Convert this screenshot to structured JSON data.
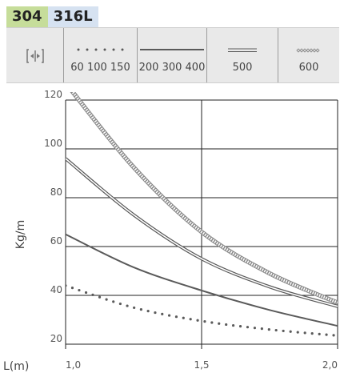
{
  "tabs": [
    {
      "label": "304",
      "active": true
    },
    {
      "label": "316L",
      "active": false
    }
  ],
  "legend": {
    "resize_icon": "resize-horizontal-icon",
    "items": [
      {
        "label": "60 100 150",
        "style": "dotted"
      },
      {
        "label": "200 300 400",
        "style": "solid"
      },
      {
        "label": "500",
        "style": "double"
      },
      {
        "label": "600",
        "style": "diamond"
      }
    ]
  },
  "colors": {
    "tab_active": "#c6dd9a",
    "tab_inactive": "#d6e2f1",
    "series": "#5a5a5a",
    "diamond_series": "#8a8a8a"
  },
  "chart_data": {
    "type": "line",
    "xlabel": "L(m)",
    "ylabel": "Kg/m",
    "xlim": [
      1.0,
      2.0
    ],
    "ylim": [
      20,
      120
    ],
    "x_ticks": [
      "1,0",
      "1,5",
      "2,0"
    ],
    "y_ticks": [
      "20",
      "40",
      "60",
      "80",
      "100",
      "120"
    ],
    "grid": true,
    "series": [
      {
        "name": "60 100 150",
        "style": "dotted",
        "x": [
          1.0,
          1.25,
          1.5,
          1.75,
          2.0
        ],
        "values": [
          44,
          35,
          29.5,
          26,
          23.5
        ]
      },
      {
        "name": "200 300 400",
        "style": "solid",
        "x": [
          1.0,
          1.25,
          1.5,
          1.75,
          2.0
        ],
        "values": [
          65,
          51.5,
          42,
          34,
          27.5
        ]
      },
      {
        "name": "500",
        "style": "double",
        "x": [
          1.0,
          1.25,
          1.5,
          1.75,
          2.0
        ],
        "values": [
          96,
          73,
          55,
          43.5,
          35.5
        ]
      },
      {
        "name": "600",
        "style": "diamond",
        "x": [
          1.0,
          1.25,
          1.5,
          1.75,
          2.0
        ],
        "values": [
          127,
          92.5,
          66,
          49,
          37
        ]
      }
    ]
  }
}
